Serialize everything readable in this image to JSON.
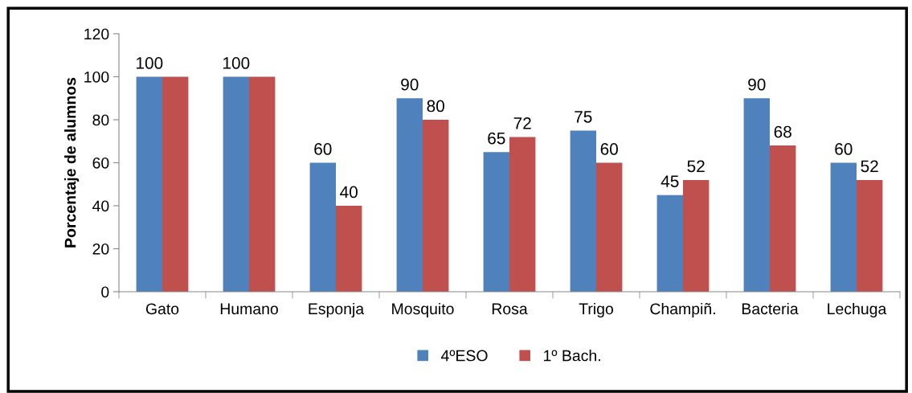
{
  "chart_data": {
    "type": "bar",
    "ylabel": "Porcentaje de alumnos",
    "categories": [
      "Gato",
      "Humano",
      "Esponja",
      "Mosquito",
      "Rosa",
      "Trigo",
      "Champiñ.",
      "Bacteria",
      "Lechuga"
    ],
    "series": [
      {
        "name": "4ºESO",
        "color": "#4f81bd",
        "values": [
          100,
          100,
          60,
          90,
          65,
          75,
          45,
          90,
          60
        ],
        "value_labels": [
          "100",
          "100",
          "60",
          "90",
          "65",
          "75",
          "45",
          "90",
          "60"
        ]
      },
      {
        "name": "1º Bach.",
        "color": "#c0504d",
        "values": [
          100,
          100,
          40,
          80,
          72,
          60,
          52,
          68,
          52
        ],
        "value_labels": [
          null,
          null,
          "40",
          "80",
          "72",
          "60",
          "52",
          "68",
          "52"
        ]
      }
    ],
    "ylim": [
      0,
      120
    ],
    "yticks": [
      0,
      20,
      40,
      60,
      80,
      100,
      120
    ],
    "grid": false,
    "legend": "bottom"
  }
}
